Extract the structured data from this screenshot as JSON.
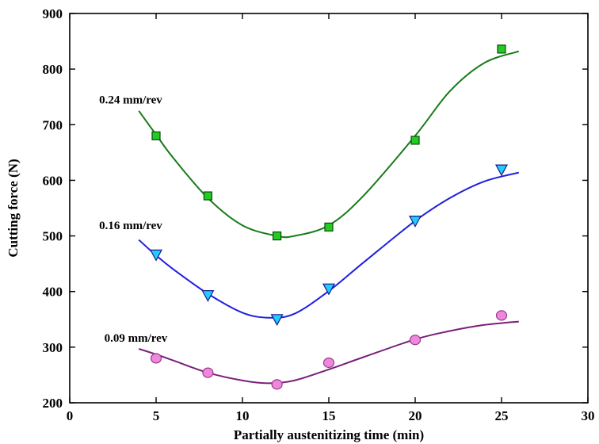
{
  "chart_data": {
    "type": "scatter",
    "title": "",
    "xlabel": "Partially austenitizing time (min)",
    "ylabel": "Cutting force (N)",
    "xlim": [
      0,
      30
    ],
    "ylim": [
      200,
      900
    ],
    "xticks": [
      0,
      5,
      10,
      15,
      20,
      25,
      30
    ],
    "yticks": [
      200,
      300,
      400,
      500,
      600,
      700,
      800,
      900
    ],
    "x_tick_labels": [
      "0",
      "5",
      "10",
      "15",
      "20",
      "25",
      "30"
    ],
    "y_tick_labels": [
      "200",
      "300",
      "400",
      "500",
      "600",
      "700",
      "800",
      "900"
    ],
    "grid": false,
    "legend": "none (series labelled inline)",
    "series": [
      {
        "name": "0.24 mm/rev",
        "marker": "square",
        "marker_color": "#22cc22",
        "line_color": "#1a7a1a",
        "x": [
          5,
          8,
          12,
          15,
          20,
          25
        ],
        "y": [
          680,
          572,
          500,
          516,
          672,
          836
        ],
        "fit_x": [
          4,
          5,
          6,
          8,
          10,
          12,
          13,
          15,
          17,
          20,
          22,
          24,
          26
        ],
        "fit_y": [
          725,
          682,
          640,
          568,
          519,
          500,
          500,
          519,
          572,
          680,
          760,
          811,
          832
        ]
      },
      {
        "name": "0.16 mm/rev",
        "marker": "triangle-down",
        "marker_color": "#22ccff",
        "line_color": "#1f1fe0",
        "x": [
          5,
          8,
          12,
          15,
          20,
          25
        ],
        "y": [
          466,
          393,
          350,
          405,
          527,
          619
        ],
        "fit_x": [
          4,
          5,
          6,
          8,
          10,
          11.5,
          13,
          15,
          17,
          20,
          22,
          24,
          26
        ],
        "fit_y": [
          493,
          465,
          440,
          396,
          362,
          353,
          360,
          401,
          452,
          527,
          568,
          598,
          614
        ]
      },
      {
        "name": "0.09 mm/rev",
        "marker": "circle",
        "marker_color": "#ee88dd",
        "line_color": "#7a1f7a",
        "x": [
          5,
          8,
          12,
          15,
          20,
          25
        ],
        "y": [
          280,
          254,
          233,
          272,
          313,
          357
        ],
        "fit_x": [
          4,
          5,
          6,
          8,
          10,
          11.5,
          13,
          15,
          17,
          20,
          22,
          24,
          26
        ],
        "fit_y": [
          297,
          287,
          276,
          254,
          240,
          235,
          240,
          260,
          282,
          314,
          329,
          340,
          346
        ]
      }
    ]
  }
}
